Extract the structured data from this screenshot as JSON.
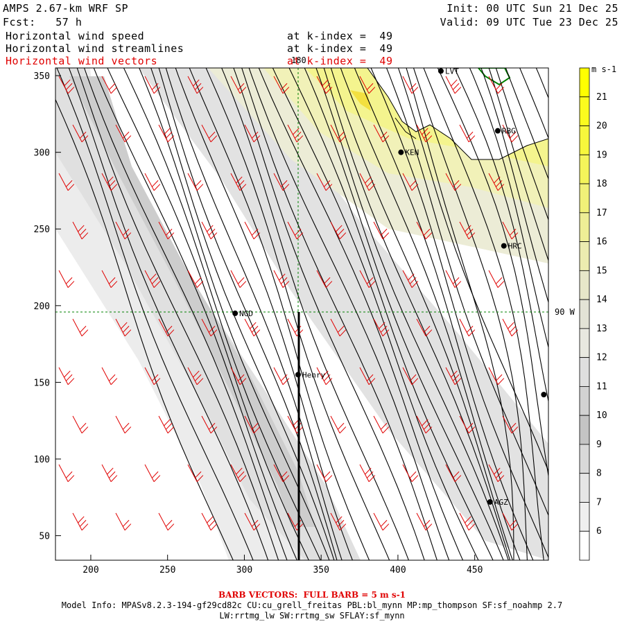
{
  "header": {
    "model_title": "AMPS 2.67-km WRF SP",
    "forecast": "Fcst:   57 h",
    "init": "Init: 00 UTC Sun 21 Dec 25",
    "valid": "Valid: 09 UTC Tue 23 Dec 25",
    "line1_label": "Horizontal wind speed",
    "line1_level": "at k-index =  49",
    "line2_label": "Horizontal wind streamlines",
    "line2_level": "at k-index =  49",
    "line3_label": "Horizontal wind vectors",
    "line3_level": "at k-index =  49"
  },
  "axes": {
    "x_ticks": [
      "200",
      "250",
      "300",
      "350",
      "400",
      "450"
    ],
    "y_ticks": [
      "350",
      "300",
      "250",
      "200",
      "150",
      "100",
      "50"
    ],
    "x_range": [
      177,
      498
    ],
    "y_range": [
      34,
      355
    ],
    "meridian_label": "180",
    "parallel_label": "90 W"
  },
  "stations": [
    {
      "name": "LVT",
      "x": 428,
      "y": 353
    },
    {
      "name": "RBG",
      "x": 465,
      "y": 314
    },
    {
      "name": "KEN",
      "x": 402,
      "y": 300
    },
    {
      "name": "HRC",
      "x": 469,
      "y": 239
    },
    {
      "name": "NGD",
      "x": 294,
      "y": 195
    },
    {
      "name": "Henry",
      "x": 335,
      "y": 155
    },
    {
      "name": "AGZ",
      "x": 460,
      "y": 72
    },
    {
      "name": "",
      "x": 495,
      "y": 142
    }
  ],
  "colorbar": {
    "units": "m s-1",
    "labels": [
      "21",
      "20",
      "19",
      "18",
      "17",
      "16",
      "15",
      "14",
      "13",
      "12",
      "11",
      "10",
      "9",
      "8",
      "7",
      "6"
    ],
    "colors": [
      "#ffff00",
      "#fbfb1e",
      "#f7f73c",
      "#f4f45a",
      "#f1f178",
      "#eeee96",
      "#ececb0",
      "#e7e7c9",
      "#e3e3d6",
      "#e8e8e0",
      "#dfdfdf",
      "#d2d2d2",
      "#c4c4c4",
      "#d9d9d9",
      "#e6e6e6",
      "#efefef",
      "#ffffff"
    ]
  },
  "footer": {
    "barb_note": "BARB VECTORS:  FULL BARB = 5 m s-1",
    "model_info": "Model Info: MPASv8.2.3-194-gf29cd82c CU:cu_grell_freitas PBL:bl_mynn MP:mp_thompson SF:sf_noahmp 2.7",
    "model_info2": "LW:rrtmg_lw SW:rrtmg_sw SFLAY:sf_mynn"
  }
}
